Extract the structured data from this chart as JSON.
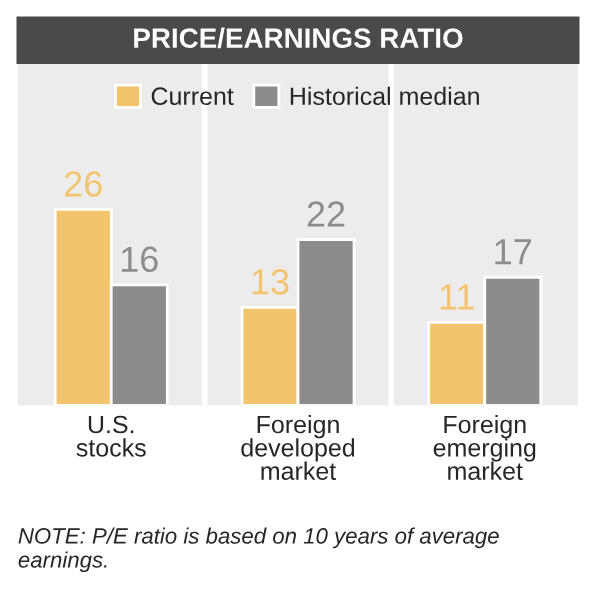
{
  "chart_data": {
    "type": "bar",
    "title": "PRICE/EARNINGS RATIO",
    "categories": [
      "U.S.\nstocks",
      "Foreign\ndeveloped\nmarket",
      "Foreign\nemerging\nmarket"
    ],
    "series": [
      {
        "name": "Current",
        "color": "#f3c46e",
        "values": [
          26,
          13,
          11
        ]
      },
      {
        "name": "Historical median",
        "color": "#8c8c8c",
        "values": [
          16,
          22,
          17
        ]
      }
    ],
    "data_labels": true,
    "legend": "top",
    "grid": false,
    "annotations": [
      "NOTE: P/E ratio is based on 10 years of average earnings."
    ]
  }
}
